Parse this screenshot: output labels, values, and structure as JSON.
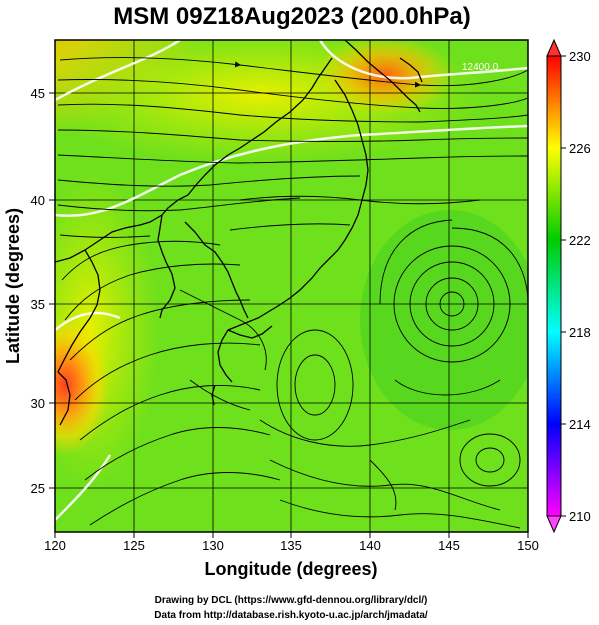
{
  "title": "MSM 09Z18Aug2023 (200.0hPa)",
  "xlabel": "Longitude (degrees)",
  "ylabel": "Latitude  (degrees)",
  "x_ticks": [
    "120",
    "125",
    "130",
    "135",
    "140",
    "145",
    "150"
  ],
  "y_ticks": [
    "25",
    "30",
    "35",
    "40",
    "45"
  ],
  "colorbar": {
    "ticks": [
      "230",
      "226",
      "222",
      "218",
      "214",
      "210"
    ],
    "colors": [
      "#ff00ff",
      "#0000ff",
      "#00ffff",
      "#00cc00",
      "#ffff00",
      "#ff0000"
    ]
  },
  "contour_label": "12400.0",
  "credit_line1": "Drawing by DCL (https://www.gfd-dennou.org/library/dcl/)",
  "credit_line2": "Data from http://database.rish.kyoto-u.ac.jp/arch/jmadata/",
  "chart_data": {
    "type": "heatmap",
    "title": "MSM 09Z18Aug2023 (200.0hPa)",
    "xlabel": "Longitude (degrees)",
    "ylabel": "Latitude  (degrees)",
    "xlim": [
      120,
      150
    ],
    "ylim": [
      22.4,
      47.6
    ],
    "colorbar_range": [
      210,
      230
    ],
    "colorbar_ticks": [
      230,
      226,
      222,
      218,
      214,
      210
    ],
    "grid": true,
    "overlays": [
      "streamlines",
      "height contours",
      "coastlines"
    ]
  }
}
